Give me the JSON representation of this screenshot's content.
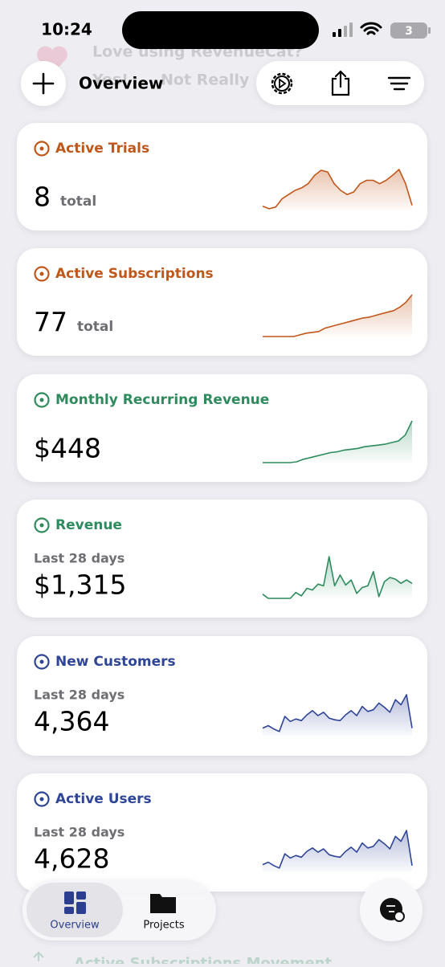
{
  "status_bar": {
    "time": "10:24",
    "battery": "3"
  },
  "banner": {
    "text": "Love using RevenueCat?",
    "yes": "Yes!",
    "no": "Not Really"
  },
  "header": {
    "title": "Overview"
  },
  "cards": [
    {
      "title": "Active Trials",
      "value": "8",
      "unit": "total",
      "color": "#c0571a",
      "sparkline": [
        12,
        6,
        10,
        30,
        40,
        50,
        56,
        66,
        86,
        98,
        94,
        66,
        50,
        40,
        46,
        66,
        74,
        74,
        66,
        74,
        86,
        100,
        66,
        14
      ]
    },
    {
      "title": "Active Subscriptions",
      "value": "77",
      "unit": "total",
      "color": "#c0571a",
      "sparkline": [
        0,
        0,
        0,
        0,
        0,
        0,
        4,
        8,
        10,
        12,
        20,
        24,
        28,
        32,
        36,
        40,
        44,
        46,
        50,
        54,
        58,
        62,
        70,
        82,
        100
      ]
    },
    {
      "title": "Monthly Recurring Revenue",
      "value": "$448",
      "color": "#2e8b5e",
      "sparkline": [
        0,
        0,
        0,
        0,
        0,
        2,
        8,
        12,
        16,
        20,
        24,
        26,
        30,
        32,
        34,
        38,
        40,
        42,
        44,
        48,
        52,
        66,
        100
      ]
    },
    {
      "title": "Revenue",
      "subtitle": "Last 28 days",
      "value": "$1,315",
      "color": "#2e8b5e",
      "sparkline": [
        10,
        0,
        0,
        0,
        0,
        0,
        14,
        6,
        24,
        20,
        34,
        30,
        100,
        30,
        56,
        32,
        44,
        12,
        26,
        30,
        64,
        4,
        40,
        50,
        46,
        36,
        44,
        36
      ]
    },
    {
      "title": "New Customers",
      "subtitle": "Last 28 days",
      "value": "4,364",
      "color": "#2f4596",
      "sparkline": [
        20,
        26,
        18,
        12,
        48,
        36,
        42,
        38,
        52,
        62,
        50,
        58,
        44,
        40,
        38,
        52,
        62,
        50,
        72,
        60,
        64,
        80,
        70,
        58,
        88,
        76,
        100,
        20
      ]
    },
    {
      "title": "Active Users",
      "subtitle": "Last 28 days",
      "value": "4,628",
      "color": "#2f4596",
      "sparkline": [
        18,
        24,
        16,
        10,
        44,
        34,
        40,
        36,
        50,
        58,
        48,
        56,
        42,
        38,
        36,
        50,
        60,
        48,
        70,
        58,
        62,
        78,
        68,
        56,
        86,
        74,
        100,
        16
      ]
    }
  ],
  "tabs": [
    {
      "label": "Overview"
    },
    {
      "label": "Projects"
    }
  ],
  "next_card": {
    "title": "Active Subscriptions Movement"
  }
}
